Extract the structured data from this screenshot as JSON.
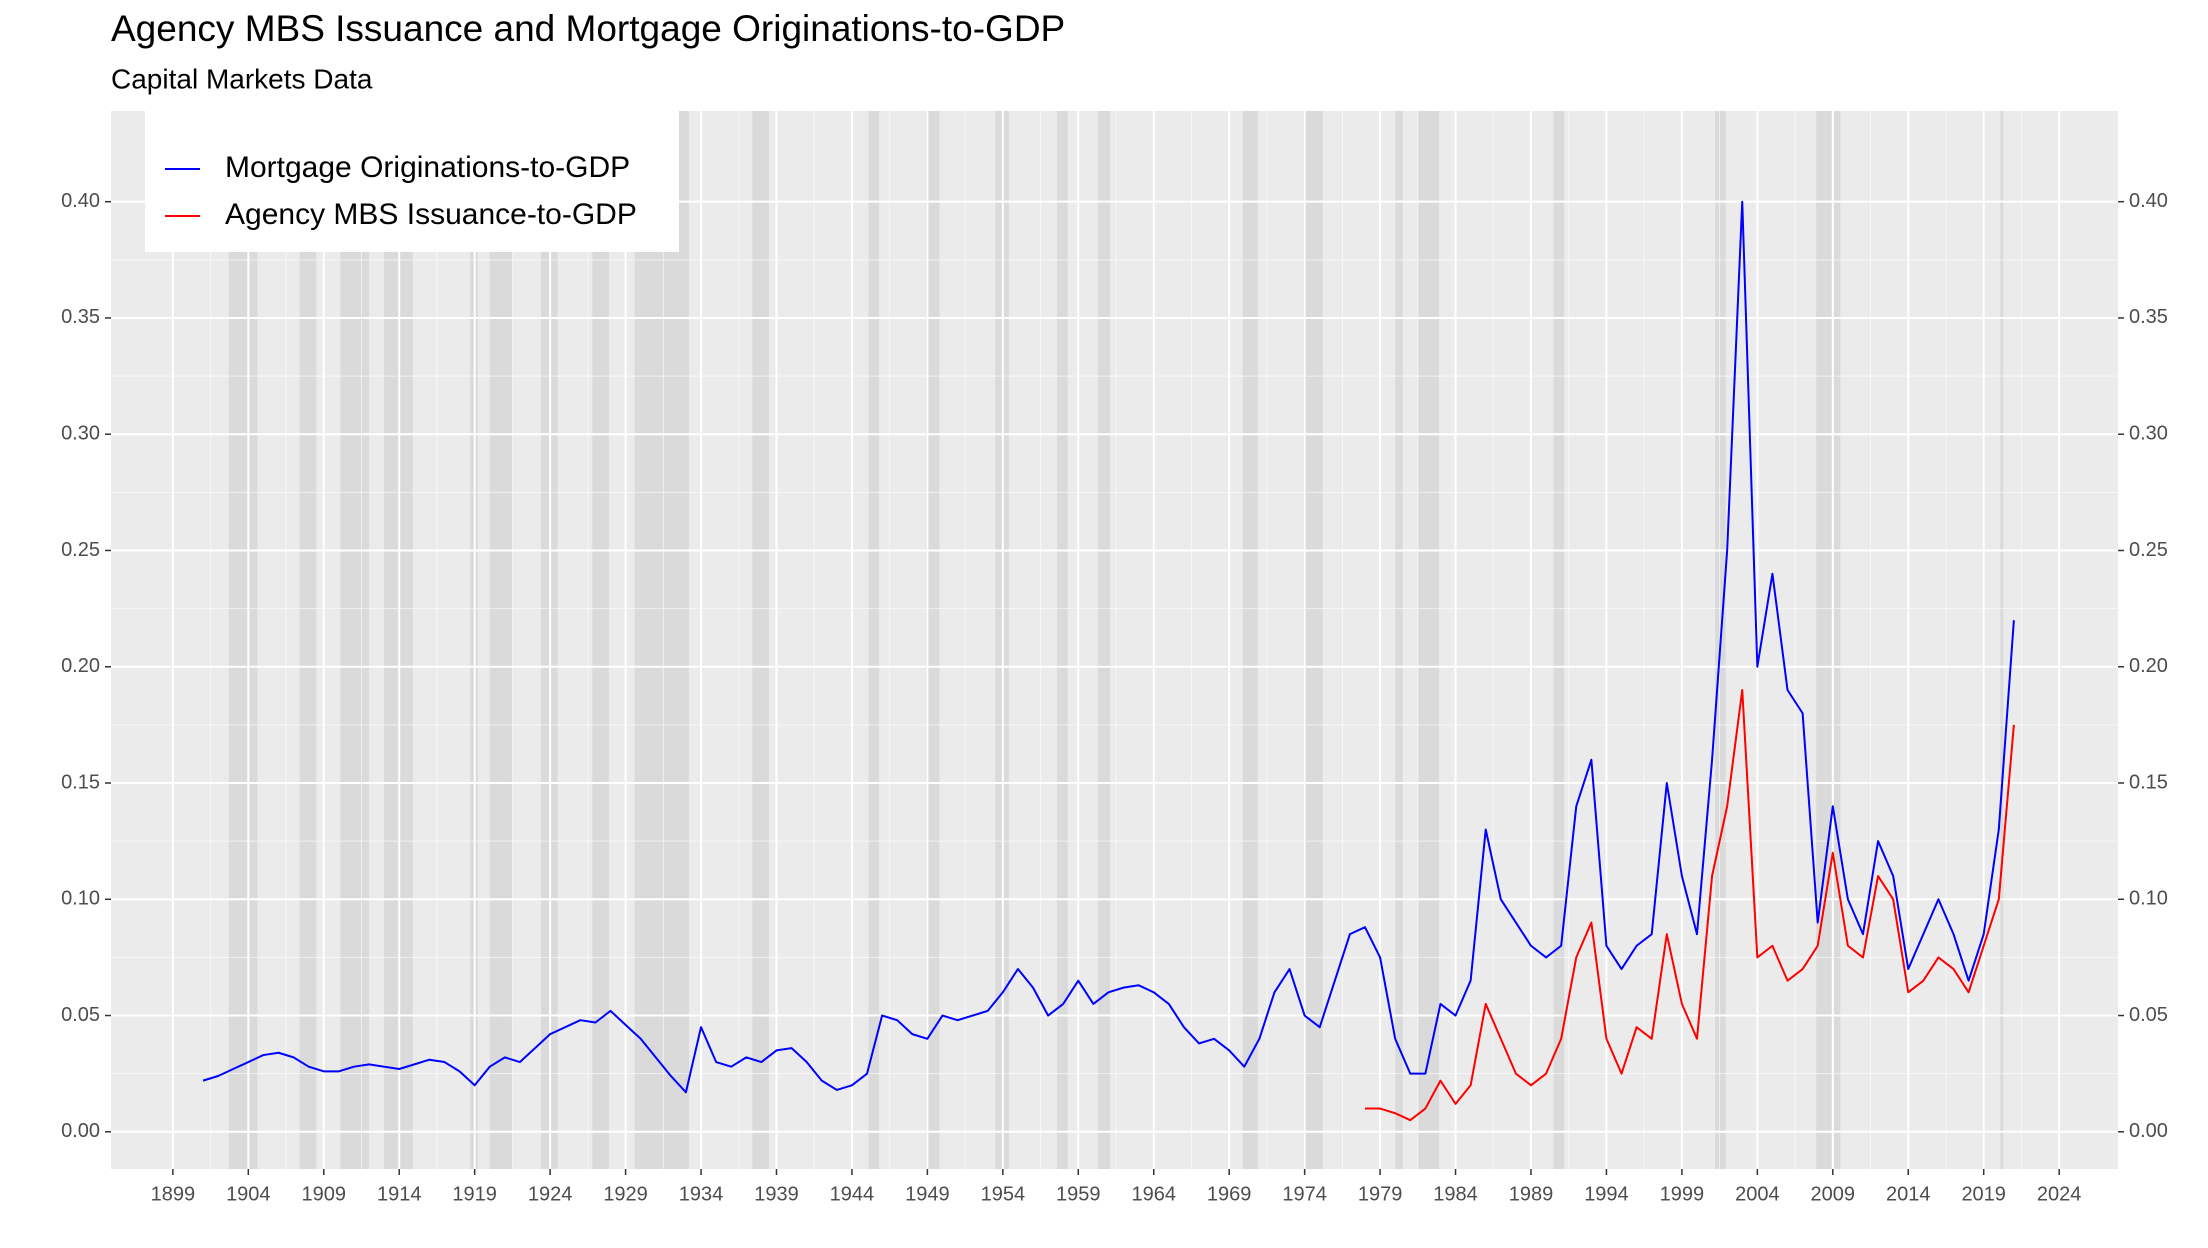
{
  "chart_data": {
    "type": "line",
    "title": "Agency MBS Issuance and Mortgage Originations-to-GDP",
    "subtitle": "Capital Markets Data",
    "x": [
      1901,
      1902,
      1903,
      1904,
      1905,
      1906,
      1907,
      1908,
      1909,
      1910,
      1911,
      1912,
      1913,
      1914,
      1915,
      1916,
      1917,
      1918,
      1919,
      1920,
      1921,
      1922,
      1923,
      1924,
      1925,
      1926,
      1927,
      1928,
      1929,
      1930,
      1931,
      1932,
      1933,
      1934,
      1935,
      1936,
      1937,
      1938,
      1939,
      1940,
      1941,
      1942,
      1943,
      1944,
      1945,
      1946,
      1947,
      1948,
      1949,
      1950,
      1951,
      1952,
      1953,
      1954,
      1955,
      1956,
      1957,
      1958,
      1959,
      1960,
      1961,
      1962,
      1963,
      1964,
      1965,
      1966,
      1967,
      1968,
      1969,
      1970,
      1971,
      1972,
      1973,
      1974,
      1975,
      1976,
      1977,
      1978,
      1979,
      1980,
      1981,
      1982,
      1983,
      1984,
      1985,
      1986,
      1987,
      1988,
      1989,
      1990,
      1991,
      1992,
      1993,
      1994,
      1995,
      1996,
      1997,
      1998,
      1999,
      2000,
      2001,
      2002,
      2003,
      2004,
      2005,
      2006,
      2007,
      2008,
      2009,
      2010,
      2011,
      2012,
      2013,
      2014,
      2015,
      2016,
      2017,
      2018,
      2019,
      2020,
      2021
    ],
    "series": [
      {
        "name": "Mortgage Originations-to-GDP",
        "color": "#0000ff",
        "values": [
          0.022,
          0.024,
          0.027,
          0.03,
          0.033,
          0.034,
          0.032,
          0.028,
          0.026,
          0.026,
          0.028,
          0.029,
          0.028,
          0.027,
          0.029,
          0.031,
          0.03,
          0.026,
          0.02,
          0.028,
          0.032,
          0.03,
          0.036,
          0.042,
          0.045,
          0.048,
          0.047,
          0.052,
          0.046,
          0.04,
          0.032,
          0.024,
          0.017,
          0.045,
          0.03,
          0.028,
          0.032,
          0.03,
          0.035,
          0.036,
          0.03,
          0.022,
          0.018,
          0.02,
          0.025,
          0.05,
          0.048,
          0.042,
          0.04,
          0.05,
          0.048,
          0.05,
          0.052,
          0.06,
          0.07,
          0.062,
          0.05,
          0.055,
          0.065,
          0.055,
          0.06,
          0.062,
          0.063,
          0.06,
          0.055,
          0.045,
          0.038,
          0.04,
          0.035,
          0.028,
          0.04,
          0.06,
          0.07,
          0.05,
          0.045,
          0.065,
          0.085,
          0.088,
          0.075,
          0.04,
          0.025,
          0.025,
          0.055,
          0.05,
          0.065,
          0.13,
          0.1,
          0.09,
          0.08,
          0.075,
          0.08,
          0.14,
          0.16,
          0.08,
          0.07,
          0.08,
          0.085,
          0.15,
          0.11,
          0.085,
          0.16,
          0.25,
          0.4,
          0.2,
          0.24,
          0.19,
          0.18,
          0.09,
          0.14,
          0.1,
          0.085,
          0.125,
          0.11,
          0.07,
          0.085,
          0.1,
          0.085,
          0.065,
          0.085,
          0.13,
          0.22
        ]
      },
      {
        "name": "Agency MBS Issuance-to-GDP",
        "color": "#ff0000",
        "values": [
          null,
          null,
          null,
          null,
          null,
          null,
          null,
          null,
          null,
          null,
          null,
          null,
          null,
          null,
          null,
          null,
          null,
          null,
          null,
          null,
          null,
          null,
          null,
          null,
          null,
          null,
          null,
          null,
          null,
          null,
          null,
          null,
          null,
          null,
          null,
          null,
          null,
          null,
          null,
          null,
          null,
          null,
          null,
          null,
          null,
          null,
          null,
          null,
          null,
          null,
          null,
          null,
          null,
          null,
          null,
          null,
          null,
          null,
          null,
          null,
          null,
          null,
          null,
          null,
          null,
          null,
          null,
          null,
          null,
          null,
          null,
          null,
          null,
          null,
          null,
          null,
          null,
          0.01,
          0.01,
          0.008,
          0.005,
          0.01,
          0.022,
          0.012,
          0.02,
          0.055,
          0.04,
          0.025,
          0.02,
          0.025,
          0.04,
          0.075,
          0.09,
          0.04,
          0.025,
          0.045,
          0.04,
          0.085,
          0.055,
          0.04,
          0.11,
          0.14,
          0.19,
          0.075,
          0.08,
          0.065,
          0.07,
          0.08,
          0.12,
          0.08,
          0.075,
          0.11,
          0.1,
          0.06,
          0.065,
          0.075,
          0.07,
          0.06,
          0.08,
          0.1,
          0.175
        ]
      }
    ],
    "recessions": [
      [
        1902.7,
        1904.6
      ],
      [
        1907.4,
        1908.5
      ],
      [
        1910.1,
        1912.0
      ],
      [
        1913.0,
        1914.9
      ],
      [
        1918.7,
        1919.2
      ],
      [
        1920.0,
        1921.5
      ],
      [
        1923.4,
        1924.5
      ],
      [
        1926.8,
        1927.9
      ],
      [
        1929.6,
        1933.2
      ],
      [
        1937.4,
        1938.5
      ],
      [
        1945.1,
        1945.8
      ],
      [
        1948.9,
        1949.8
      ],
      [
        1953.5,
        1954.4
      ],
      [
        1957.6,
        1958.3
      ],
      [
        1960.3,
        1961.1
      ],
      [
        1969.9,
        1970.9
      ],
      [
        1973.9,
        1975.2
      ],
      [
        1980.0,
        1980.5
      ],
      [
        1981.5,
        1982.9
      ],
      [
        1990.5,
        1991.2
      ],
      [
        2001.2,
        2001.9
      ],
      [
        2007.9,
        2009.5
      ],
      [
        2020.1,
        2020.3
      ]
    ],
    "xlim": [
      1894.9,
      2027.9
    ],
    "xticks": [
      1899,
      1904,
      1909,
      1914,
      1919,
      1924,
      1929,
      1934,
      1939,
      1944,
      1949,
      1954,
      1959,
      1964,
      1969,
      1974,
      1979,
      1984,
      1989,
      1994,
      1999,
      2004,
      2009,
      2014,
      2019,
      2024
    ],
    "ylim": [
      -0.016,
      0.439
    ],
    "yticks": [
      {
        "value": 0,
        "label": "0.00"
      },
      0.05,
      {
        "value": 0.1,
        "label": "0.10"
      },
      0.15,
      {
        "value": 0.2,
        "label": "0.20"
      },
      0.25,
      {
        "value": 0.3,
        "label": "0.30"
      },
      0.35,
      {
        "value": 0.4,
        "label": "0.40"
      }
    ],
    "grid": true,
    "legend": "top-left"
  }
}
